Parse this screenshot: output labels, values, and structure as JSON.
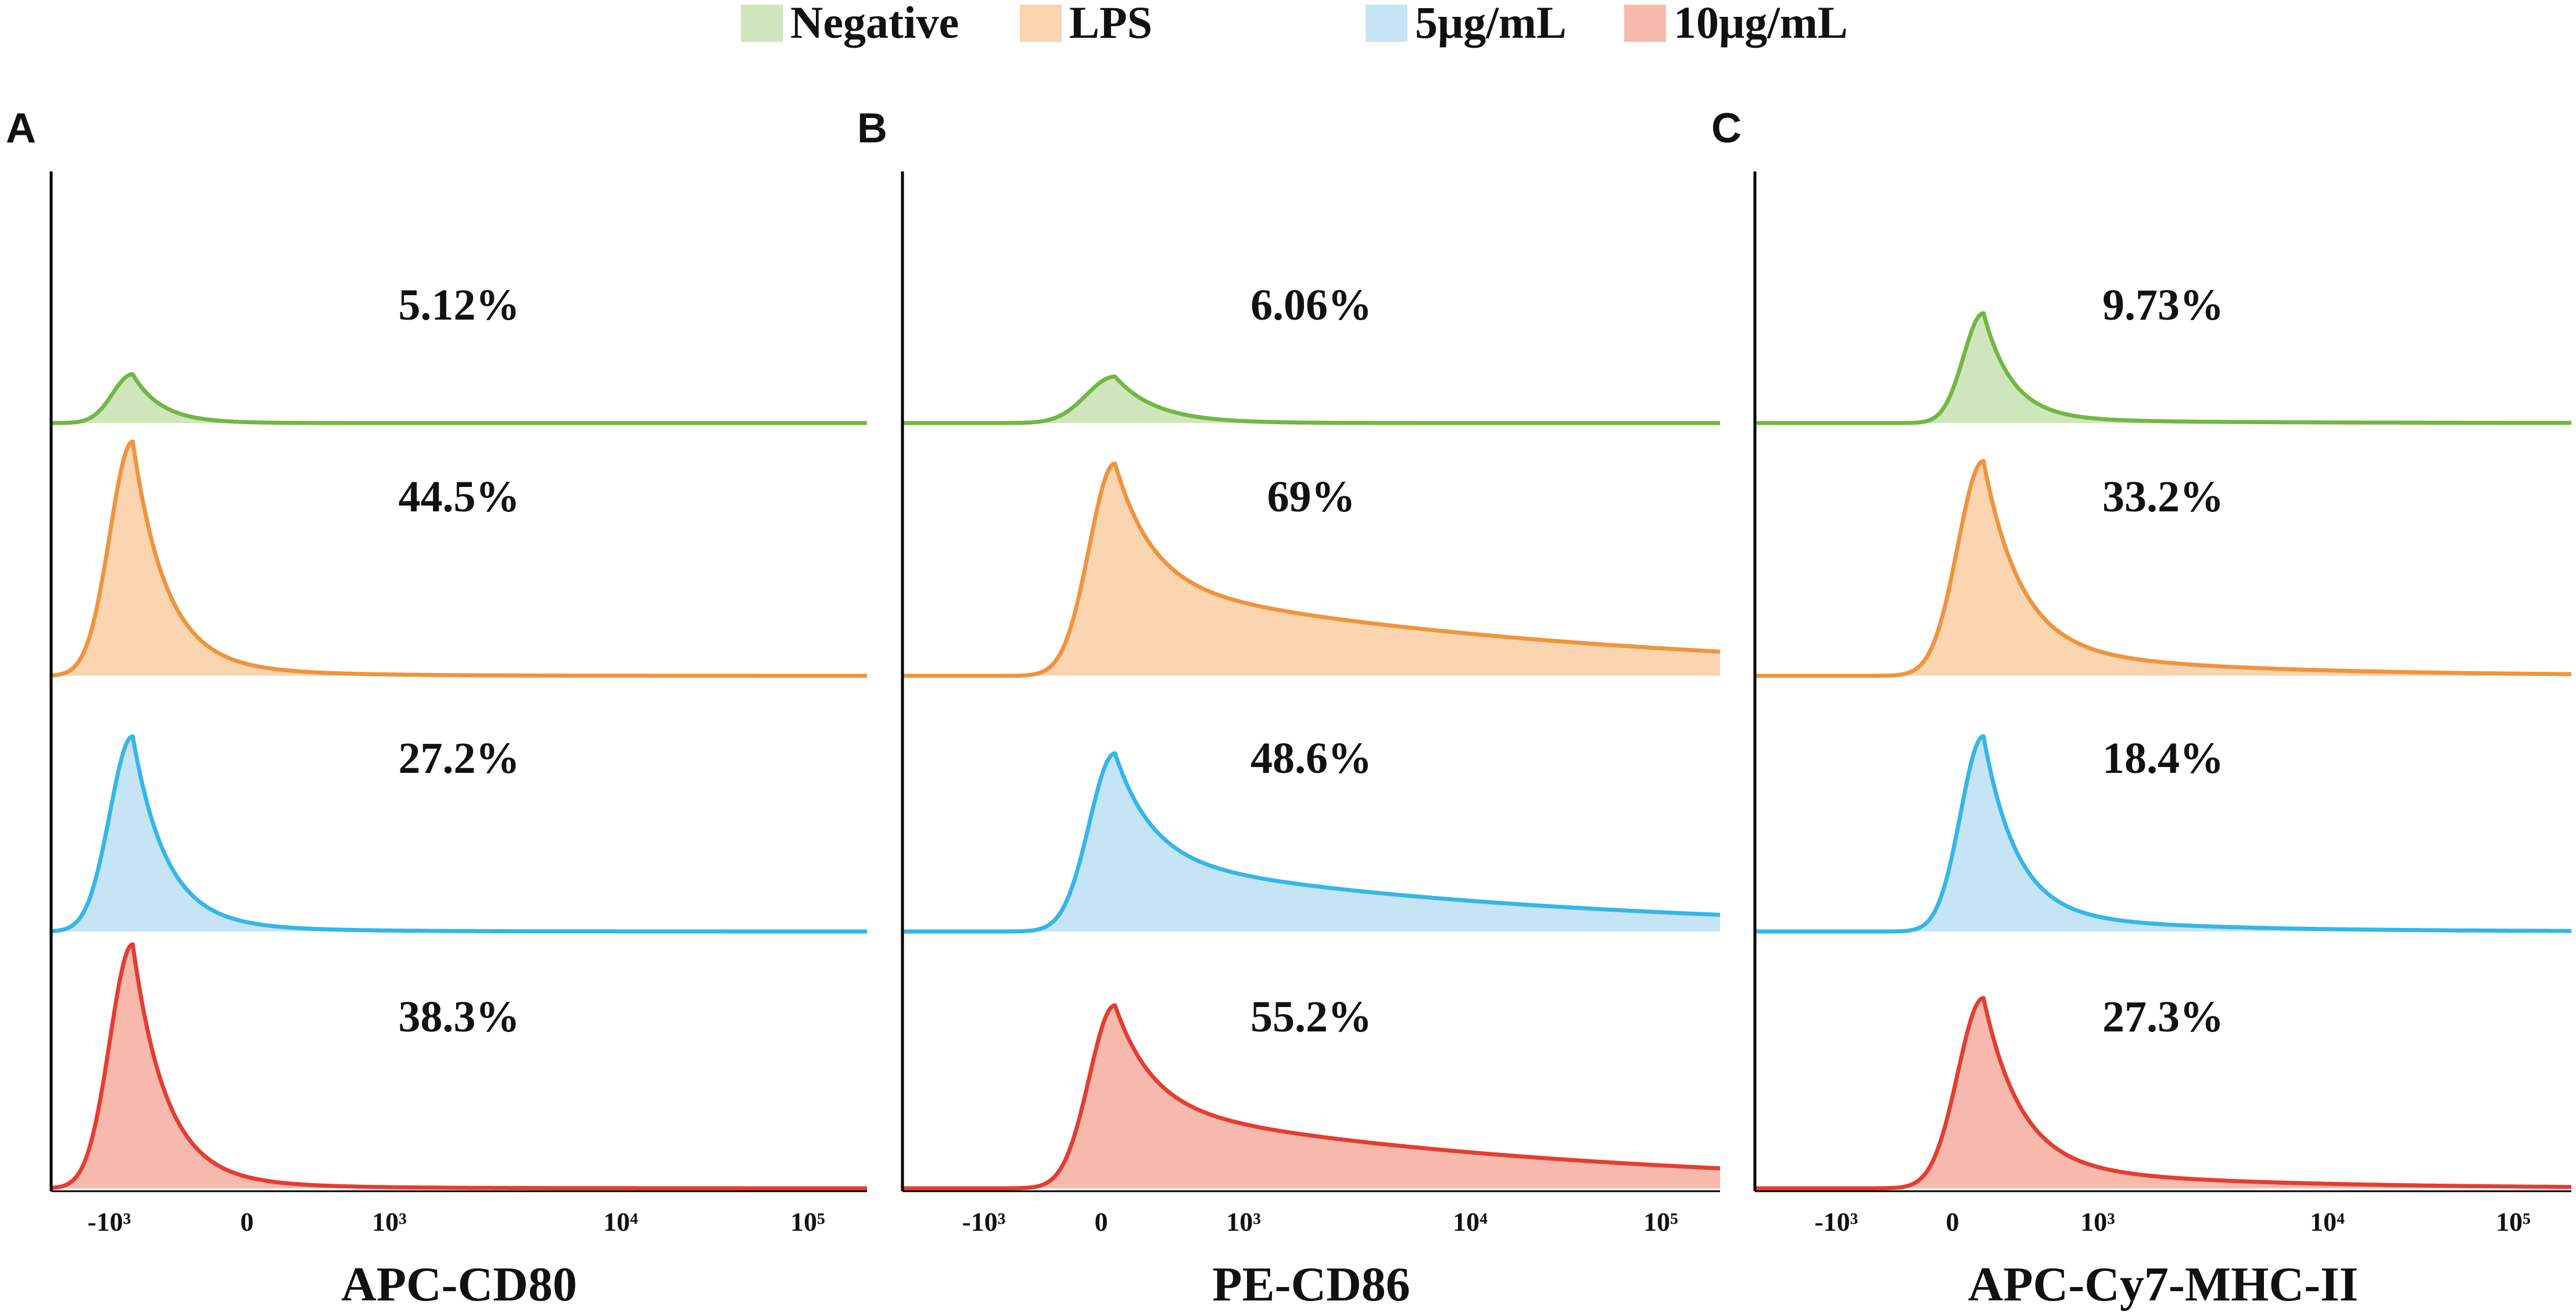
{
  "chart_data": {
    "type": "histogram",
    "legend": [
      {
        "name": "Negative",
        "color": "#cfe6bd",
        "line": "#72b744"
      },
      {
        "name": "LPS",
        "color": "#fbd4b0",
        "line": "#ef943e"
      },
      {
        "name": "5μg/mL",
        "color": "#c5e4f6",
        "line": "#35b6e6"
      },
      {
        "name": "10μg/mL",
        "color": "#f6b9ac",
        "line": "#e43d32"
      }
    ],
    "tick_labels": [
      "-10³",
      "0",
      "10³",
      "10⁴",
      "10⁵"
    ],
    "panels": [
      {
        "letter": "A",
        "xlabel": "APC-CD80",
        "percentages": [
          "5.12%",
          "44.5%",
          "27.2%",
          "38.3%"
        ],
        "tracks": [
          {
            "peak_at": 0.1,
            "peak_height": 0.2,
            "sharp_width": 0.035,
            "tail_height": 0.0,
            "tail_decay": 0.3
          },
          {
            "peak_at": 0.1,
            "peak_height": 0.96,
            "sharp_width": 0.04,
            "tail_height": 0.07,
            "tail_decay": 0.12
          },
          {
            "peak_at": 0.1,
            "peak_height": 0.8,
            "sharp_width": 0.04,
            "tail_height": 0.05,
            "tail_decay": 0.12
          },
          {
            "peak_at": 0.1,
            "peak_height": 1.0,
            "sharp_width": 0.04,
            "tail_height": 0.06,
            "tail_decay": 0.12
          }
        ]
      },
      {
        "letter": "B",
        "xlabel": "PE-CD86",
        "percentages": [
          "6.06%",
          "69%",
          "48.6%",
          "55.2%"
        ],
        "tracks": [
          {
            "peak_at": 0.26,
            "peak_height": 0.19,
            "sharp_width": 0.05,
            "tail_height": 0.0,
            "tail_decay": 0.3
          },
          {
            "peak_at": 0.26,
            "peak_height": 0.87,
            "sharp_width": 0.045,
            "tail_height": 0.38,
            "tail_decay": 0.55
          },
          {
            "peak_at": 0.26,
            "peak_height": 0.73,
            "sharp_width": 0.045,
            "tail_height": 0.3,
            "tail_decay": 0.5
          },
          {
            "peak_at": 0.26,
            "peak_height": 0.75,
            "sharp_width": 0.045,
            "tail_height": 0.34,
            "tail_decay": 0.52
          }
        ]
      },
      {
        "letter": "C",
        "xlabel": "APC-Cy7-MHC-II",
        "percentages": [
          "9.73%",
          "33.2%",
          "18.4%",
          "27.3%"
        ],
        "tracks": [
          {
            "peak_at": 0.28,
            "peak_height": 0.45,
            "sharp_width": 0.035,
            "tail_height": 0.02,
            "tail_decay": 0.2
          },
          {
            "peak_at": 0.28,
            "peak_height": 0.88,
            "sharp_width": 0.045,
            "tail_height": 0.12,
            "tail_decay": 0.25
          },
          {
            "peak_at": 0.28,
            "peak_height": 0.8,
            "sharp_width": 0.04,
            "tail_height": 0.08,
            "tail_decay": 0.2
          },
          {
            "peak_at": 0.28,
            "peak_height": 0.78,
            "sharp_width": 0.045,
            "tail_height": 0.1,
            "tail_decay": 0.25
          }
        ]
      }
    ]
  }
}
